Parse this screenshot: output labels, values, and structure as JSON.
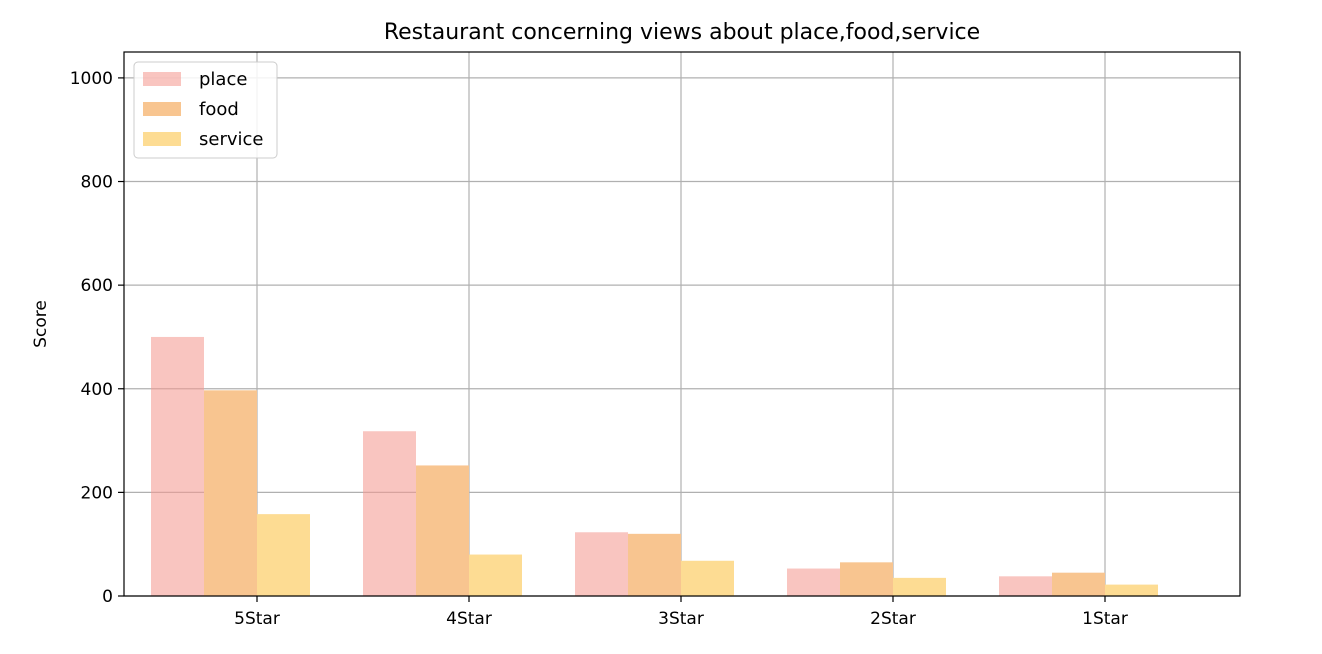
{
  "chart_data": {
    "type": "bar",
    "title": "Restaurant concerning views about place,food,service",
    "xlabel": "",
    "ylabel": "Score",
    "categories": [
      "5Star",
      "4Star",
      "3Star",
      "2Star",
      "1Star"
    ],
    "series": [
      {
        "name": "place",
        "color": "#f4999091",
        "values": [
          500,
          318,
          123,
          53,
          38
        ]
      },
      {
        "name": "food",
        "color": "#f8c590",
        "values": [
          397,
          252,
          120,
          65,
          45
        ]
      },
      {
        "name": "service",
        "color": "#fddc93",
        "values": [
          158,
          80,
          68,
          35,
          22
        ]
      }
    ],
    "ylim": [
      0,
      1050
    ],
    "yticks": [
      0,
      200,
      400,
      600,
      800,
      1000
    ],
    "grid": true,
    "legend_position": "upper-left"
  }
}
